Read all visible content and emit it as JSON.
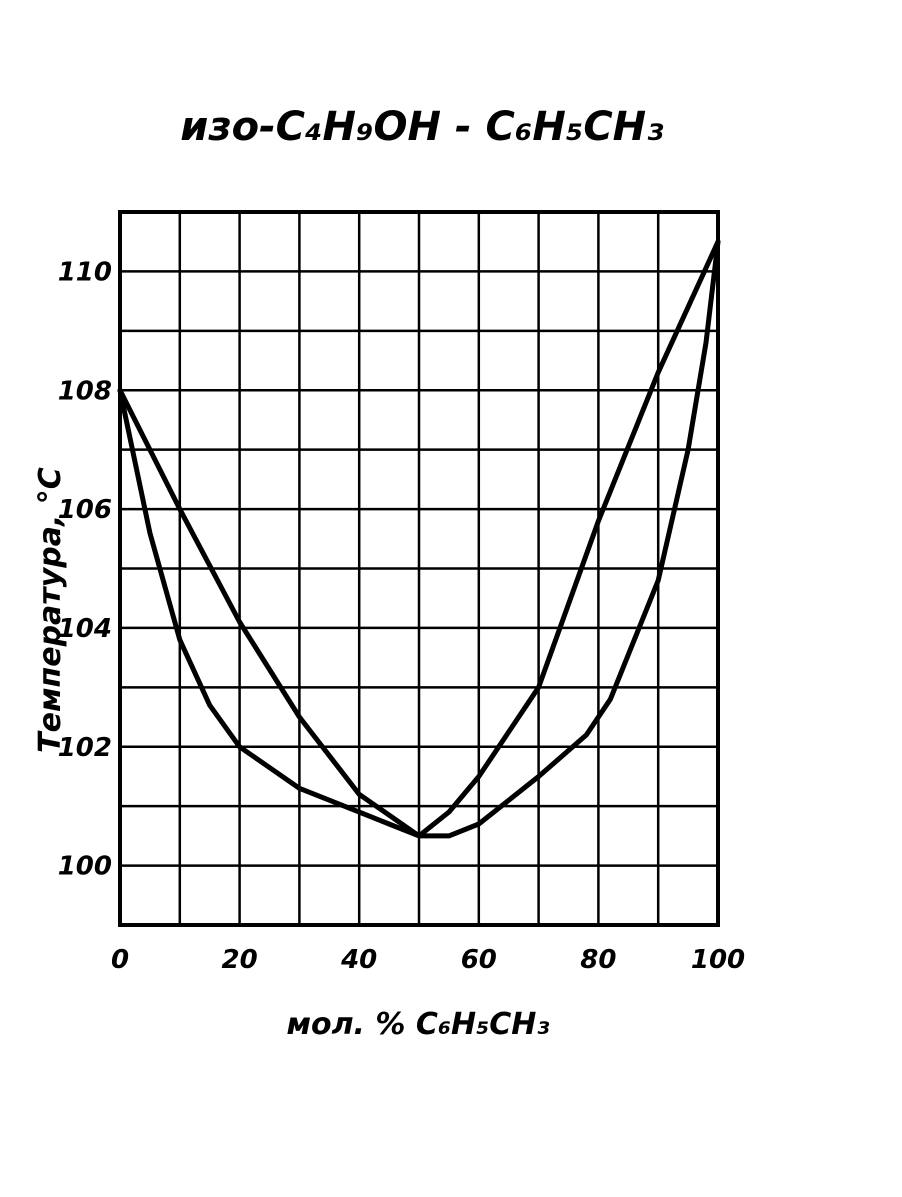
{
  "chart_data": {
    "type": "line",
    "title": "изо-C₄H₉OH - C₆H₅CH₃",
    "xlabel": "мол. % C₆H₅CH₃",
    "ylabel": "Температура, °C",
    "xlim": [
      0,
      100
    ],
    "ylim": [
      99,
      111
    ],
    "x_ticks": [
      0,
      20,
      40,
      60,
      80,
      100
    ],
    "y_ticks": [
      100,
      102,
      104,
      106,
      108,
      110
    ],
    "grid": true,
    "series": [
      {
        "x": [
          0,
          10,
          20,
          30,
          40,
          50,
          55,
          60,
          70,
          80,
          90,
          95,
          100
        ],
        "y": [
          108.0,
          106.0,
          104.1,
          102.5,
          101.2,
          100.5,
          100.9,
          101.5,
          103.0,
          105.8,
          108.3,
          109.4,
          110.5
        ],
        "color": "#000000"
      },
      {
        "x": [
          0,
          5,
          10,
          15,
          20,
          30,
          40,
          45,
          50,
          55,
          60,
          70,
          78,
          82,
          90,
          95,
          98,
          100
        ],
        "y": [
          108.0,
          105.6,
          103.8,
          102.7,
          102.0,
          101.3,
          100.9,
          100.7,
          100.5,
          100.5,
          100.7,
          101.5,
          102.2,
          102.8,
          104.8,
          107.0,
          108.8,
          110.5
        ],
        "color": "#000000"
      }
    ]
  }
}
